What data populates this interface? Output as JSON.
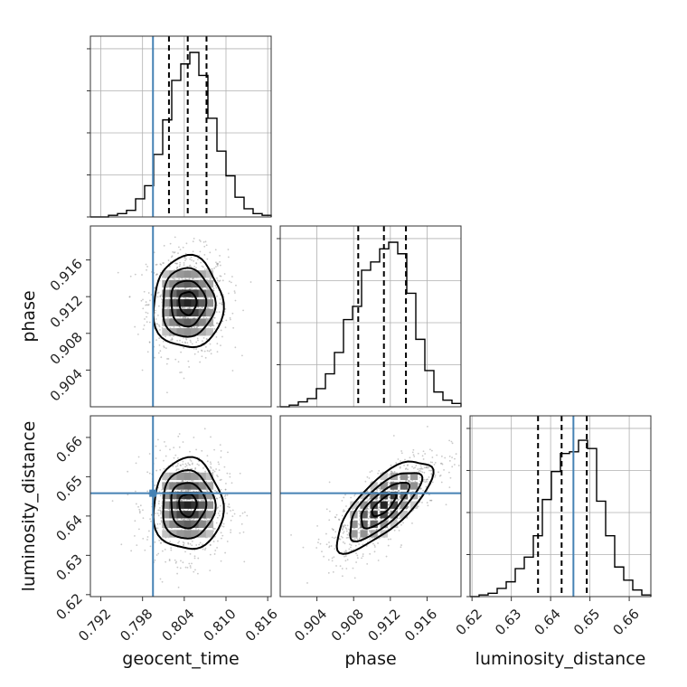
{
  "chart_data": {
    "type": "corner",
    "parameters": [
      {
        "key": "geocent_time",
        "label": "geocent_time",
        "range": [
          0.7905,
          0.8165
        ],
        "ticks": [
          "0.792",
          "0.798",
          "0.804",
          "0.810",
          "0.816"
        ],
        "truth": 0.7995,
        "quantiles": [
          0.8018,
          0.8045,
          0.8072
        ],
        "hist": [
          0.0,
          0.0,
          0.01,
          0.02,
          0.04,
          0.11,
          0.19,
          0.38,
          0.59,
          0.83,
          0.93,
          1.0,
          0.86,
          0.6,
          0.4,
          0.25,
          0.12,
          0.05,
          0.02,
          0.01
        ]
      },
      {
        "key": "phase",
        "label": "phase",
        "range": [
          0.9,
          0.9197
        ],
        "ticks": [
          "0.904",
          "0.908",
          "0.912",
          "0.916"
        ],
        "truth": null,
        "quantiles": [
          0.9085,
          0.9113,
          0.9137
        ],
        "hist": [
          0.0,
          0.01,
          0.03,
          0.05,
          0.11,
          0.2,
          0.33,
          0.53,
          0.61,
          0.83,
          0.88,
          0.96,
          1.0,
          0.93,
          0.69,
          0.41,
          0.22,
          0.09,
          0.04,
          0.02
        ]
      },
      {
        "key": "luminosity_distance",
        "label": "luminosity_distance",
        "range": [
          0.6195,
          0.6655
        ],
        "ticks": [
          "0.62",
          "0.63",
          "0.64",
          "0.65",
          "0.66"
        ],
        "truth": 0.6458,
        "quantiles": [
          0.6368,
          0.6428,
          0.6492
        ],
        "hist": [
          0.0,
          0.01,
          0.02,
          0.05,
          0.09,
          0.17,
          0.24,
          0.37,
          0.59,
          0.76,
          0.87,
          0.88,
          0.95,
          0.9,
          0.58,
          0.37,
          0.18,
          0.1,
          0.04,
          0.01
        ]
      }
    ],
    "pairs": [
      {
        "x": "geocent_time",
        "y": "phase",
        "center": [
          0.8045,
          0.9113
        ],
        "sigma": [
          0.0025,
          0.0025
        ],
        "rho": 0.0
      },
      {
        "x": "geocent_time",
        "y": "luminosity_distance",
        "center": [
          0.8045,
          0.6428
        ],
        "sigma": [
          0.0025,
          0.0058
        ],
        "rho": 0.0
      },
      {
        "x": "phase",
        "y": "luminosity_distance",
        "center": [
          0.9113,
          0.6428
        ],
        "sigma": [
          0.0026,
          0.0058
        ],
        "rho": 0.75
      }
    ],
    "contour_levels": [
      0.5,
      1.0,
      1.5,
      2.0
    ],
    "grid": true,
    "truth_color": "#4682b4",
    "line_color": "#000000"
  }
}
